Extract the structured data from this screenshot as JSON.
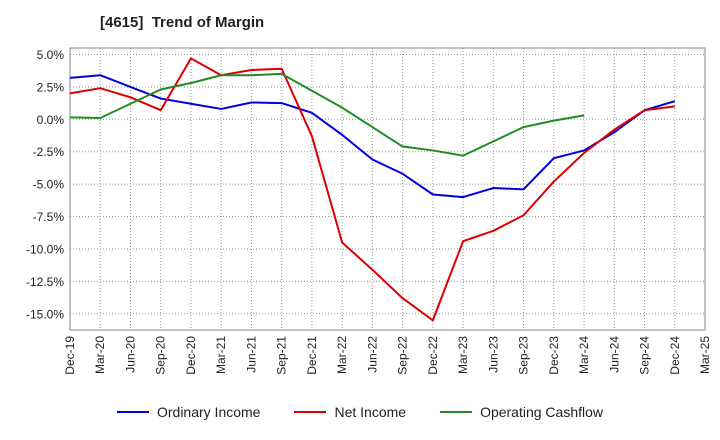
{
  "chart_data": {
    "type": "line",
    "title": "[4615]  Trend of Margin",
    "xlabel": "",
    "ylabel": "",
    "ylim": [
      -16.25,
      5.5
    ],
    "grid": true,
    "legend_position": "bottom",
    "y_ticks": [
      5.0,
      2.5,
      0.0,
      -2.5,
      -5.0,
      -7.5,
      -10.0,
      -12.5,
      -15.0
    ],
    "y_tick_labels": [
      "5.0%",
      "2.5%",
      "0.0%",
      "-2.5%",
      "-5.0%",
      "-7.5%",
      "-10.0%",
      "-12.5%",
      "-15.0%"
    ],
    "categories": [
      "Dec-19",
      "Mar-20",
      "Jun-20",
      "Sep-20",
      "Dec-20",
      "Mar-21",
      "Jun-21",
      "Sep-21",
      "Dec-21",
      "Mar-22",
      "Jun-22",
      "Sep-22",
      "Dec-22",
      "Mar-23",
      "Jun-23",
      "Sep-23",
      "Dec-23",
      "Mar-24",
      "Jun-24",
      "Sep-24",
      "Dec-24",
      "Mar-25"
    ],
    "series": [
      {
        "name": "Ordinary Income",
        "color": "#0000dd",
        "values": [
          3.2,
          3.4,
          2.5,
          1.6,
          1.2,
          0.8,
          1.3,
          1.25,
          0.5,
          -1.2,
          -3.1,
          -4.2,
          -5.8,
          -6.0,
          -5.3,
          -5.4,
          -3.0,
          -2.4,
          -1.0,
          0.7,
          1.4,
          null
        ]
      },
      {
        "name": "Net Income",
        "color": "#dd0000",
        "values": [
          2.0,
          2.4,
          1.7,
          0.7,
          4.7,
          3.4,
          3.8,
          3.9,
          -1.3,
          -9.5,
          -11.6,
          -13.8,
          -15.5,
          -9.4,
          -8.6,
          -7.4,
          -4.8,
          -2.6,
          -0.8,
          0.7,
          1.0,
          null
        ]
      },
      {
        "name": "Operating Cashflow",
        "color": "#228b22",
        "values": [
          0.15,
          0.1,
          1.2,
          2.3,
          2.8,
          3.4,
          3.4,
          3.5,
          2.2,
          0.9,
          -0.6,
          -2.1,
          -2.4,
          -2.8,
          -1.7,
          -0.6,
          -0.1,
          0.3,
          null,
          null,
          null,
          null
        ]
      }
    ]
  }
}
